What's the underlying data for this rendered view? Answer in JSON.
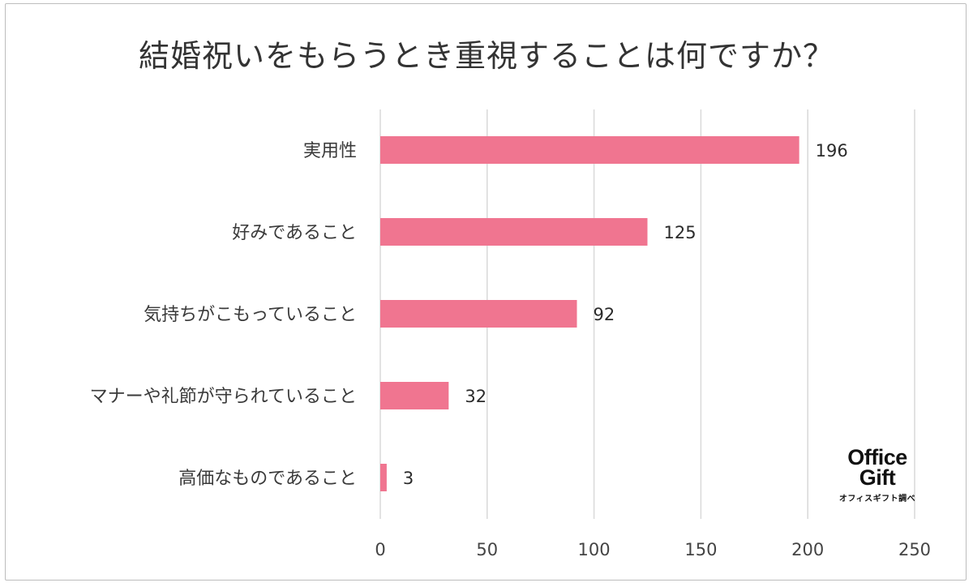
{
  "chart_data": {
    "type": "bar",
    "orientation": "horizontal",
    "title": "結婚祝いをもらうとき重視することは何ですか？",
    "categories": [
      "実用性",
      "好みであること",
      "気持ちがこもっていること",
      "マナーや礼節が守られていること",
      "高価なものであること"
    ],
    "values": [
      196,
      125,
      92,
      32,
      3
    ],
    "data_labels": [
      "196",
      "125",
      "92",
      "32",
      "3"
    ],
    "xlim": [
      0,
      250
    ],
    "xticks": [
      "0",
      "50",
      "100",
      "150",
      "200",
      "250"
    ],
    "grid": true,
    "bar_color": "#f07590"
  },
  "logo": {
    "line1": "Office",
    "line2": "Gift",
    "caption": "オフィスギフト調べ"
  }
}
